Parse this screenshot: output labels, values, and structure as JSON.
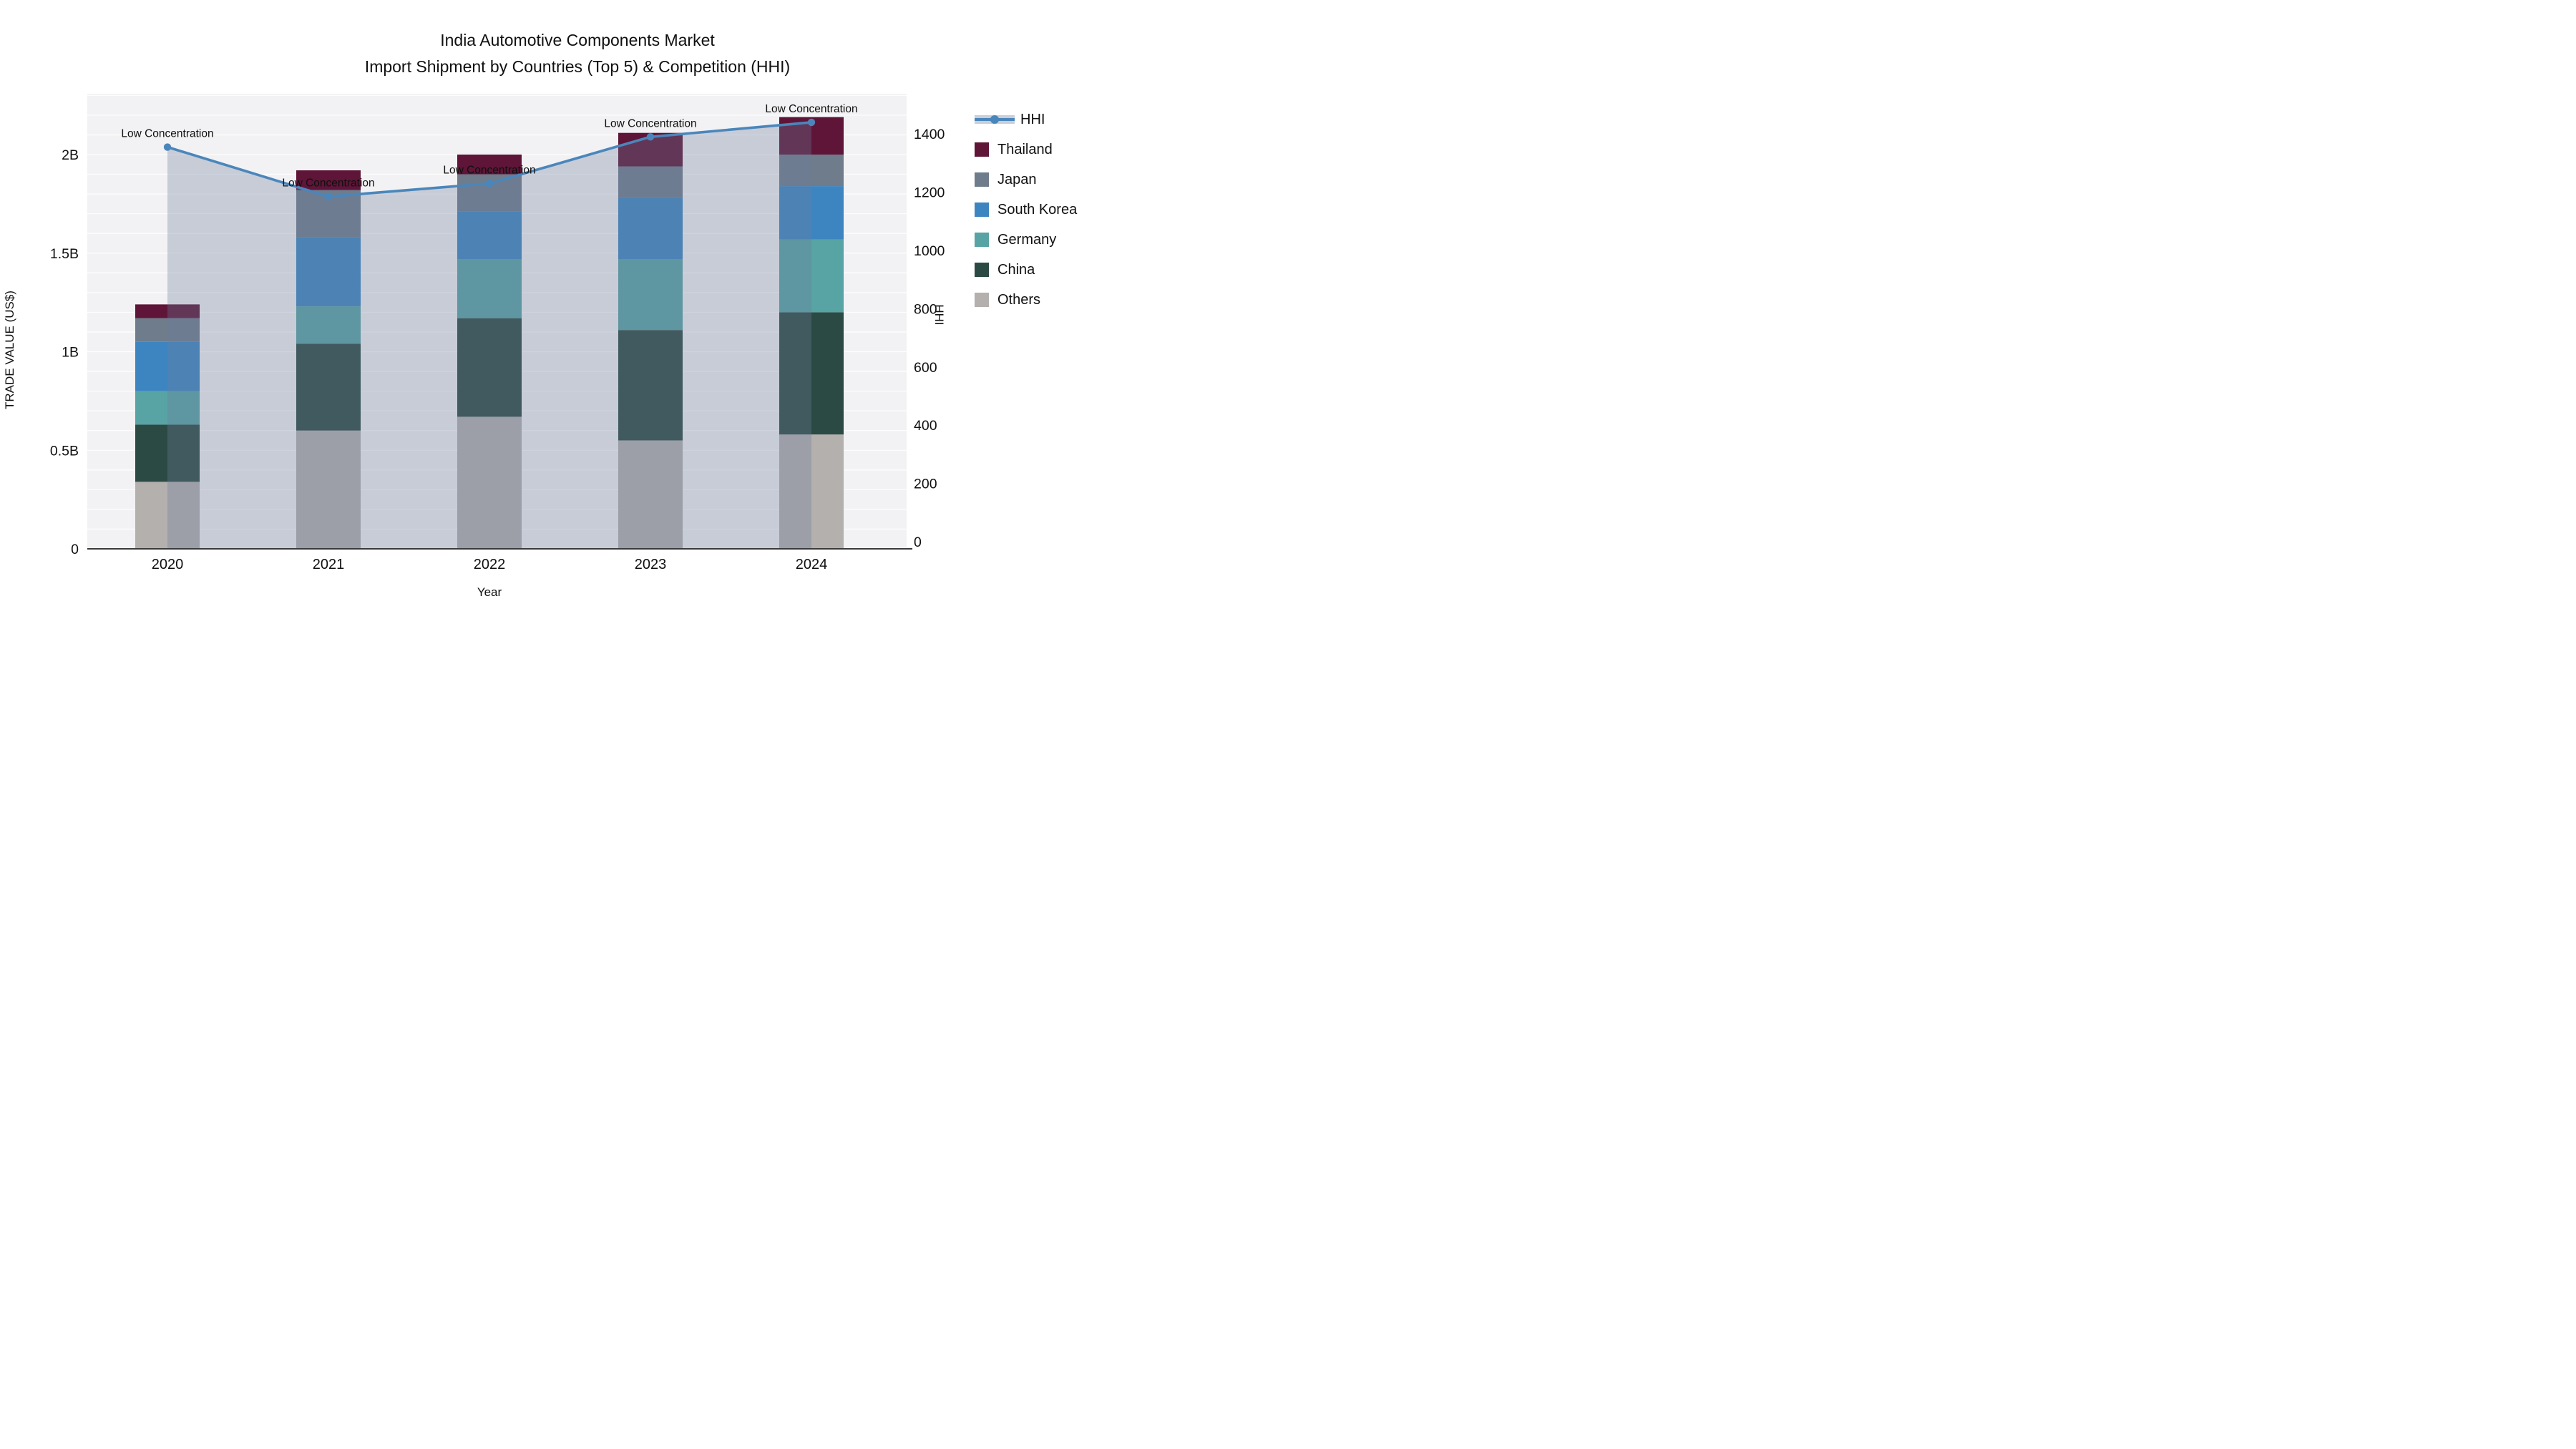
{
  "title": {
    "line1": "India Automotive Components Market",
    "line2": "Import Shipment by Countries (Top 5) & Competition (HHI)"
  },
  "axes": {
    "left": {
      "title": "TRADE VALUE (US$)",
      "tick_labels": [
        "0",
        "0.5B",
        "1B",
        "1.5B",
        "2B"
      ],
      "tick_values": [
        0,
        0.5,
        1,
        1.5,
        2
      ]
    },
    "right": {
      "title": "HHI",
      "tick_labels": [
        "0",
        "200",
        "400",
        "600",
        "800",
        "1000",
        "1200",
        "1400"
      ],
      "tick_values": [
        0,
        200,
        400,
        600,
        800,
        1000,
        1200,
        1400
      ]
    },
    "x": {
      "title": "Year",
      "categories": [
        "2020",
        "2021",
        "2022",
        "2023",
        "2024"
      ]
    }
  },
  "legend": {
    "items": [
      {
        "label": "HHI",
        "type": "line",
        "color": "#4a86bb",
        "band_color": "#c9ced9"
      },
      {
        "label": "Thailand",
        "type": "box",
        "color": "#5e1537"
      },
      {
        "label": "Japan",
        "type": "box",
        "color": "#6e7c8c"
      },
      {
        "label": "South Korea",
        "type": "box",
        "color": "#3d85c0"
      },
      {
        "label": "Germany",
        "type": "box",
        "color": "#58a3a4"
      },
      {
        "label": "China",
        "type": "box",
        "color": "#2c4a44"
      },
      {
        "label": "Others",
        "type": "box",
        "color": "#b3b0ad"
      }
    ]
  },
  "colors": {
    "plot_background": "#f2f2f4",
    "gridline": "#ffffff",
    "axis_line": "#3a3a3a",
    "text": "#101010",
    "hhi_line": "#4a86bb",
    "hhi_fill": "rgba(110,125,156,0.32)"
  },
  "chart_data": {
    "type": "combo_stacked_bar_line",
    "title": "India Automotive Components Market — Import Shipment by Countries (Top 5) & Competition (HHI)",
    "categories": [
      "2020",
      "2021",
      "2022",
      "2023",
      "2024"
    ],
    "bar_value_unit": "billion US$ trade value",
    "stack_order_bottom_to_top": [
      "Others",
      "China",
      "Germany",
      "South Korea",
      "Japan",
      "Thailand"
    ],
    "series": [
      {
        "name": "Others",
        "color": "#b3b0ad",
        "values": [
          0.34,
          0.6,
          0.67,
          0.55,
          0.58
        ]
      },
      {
        "name": "China",
        "color": "#2c4a44",
        "values": [
          0.29,
          0.44,
          0.5,
          0.56,
          0.62
        ]
      },
      {
        "name": "Germany",
        "color": "#58a3a4",
        "values": [
          0.17,
          0.19,
          0.3,
          0.36,
          0.37
        ]
      },
      {
        "name": "South Korea",
        "color": "#3d85c0",
        "values": [
          0.25,
          0.35,
          0.24,
          0.31,
          0.27
        ]
      },
      {
        "name": "Japan",
        "color": "#6e7c8c",
        "values": [
          0.12,
          0.24,
          0.19,
          0.16,
          0.16
        ]
      },
      {
        "name": "Thailand",
        "color": "#5e1537",
        "values": [
          0.07,
          0.1,
          0.1,
          0.17,
          0.19
        ]
      }
    ],
    "bar_totals": [
      1.24,
      1.92,
      2.0,
      2.11,
      2.19
    ],
    "line_series": {
      "name": "HHI",
      "axis": "right",
      "color": "#4a86bb",
      "area_fill_color": "rgba(110,125,156,0.32)",
      "values": [
        1355,
        1185,
        1230,
        1390,
        1440
      ]
    },
    "point_annotations": [
      "Low Concentration",
      "Low Concentration",
      "Low Concentration",
      "Low Concentration",
      "Low Concentration"
    ],
    "xlabel": "Year",
    "ylabel_left": "TRADE VALUE (US$)",
    "ylabel_right": "HHI",
    "ylim_left": [
      0,
      2.31
    ],
    "ylim_right": [
      0,
      1560
    ],
    "grid": "horizontal_minor_0.1B",
    "legend_position": "right"
  }
}
